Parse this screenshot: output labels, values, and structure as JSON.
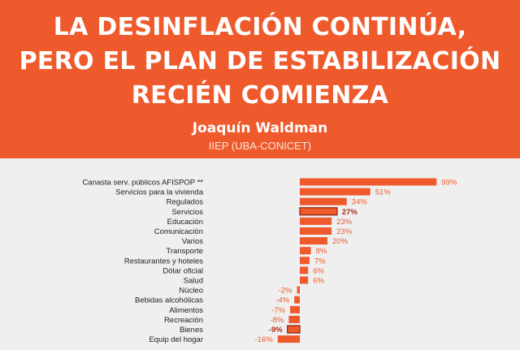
{
  "header": {
    "title_lines": [
      "LA DESINFLACIÓN CONTINÚA,",
      "PERO EL PLAN DE ESTABILIZACIÓN",
      "RECIÉN COMIENZA"
    ],
    "author": "Joaquín Waldman",
    "affiliation": "IIEP (UBA-CONICET)"
  },
  "colors": {
    "header_bg": "#ee5a2c",
    "bar": "#ee5a2c",
    "bar_highlight": "#ee5a2c",
    "highlight_outline": "#8a1d10",
    "value_label": "#ee5a2c",
    "value_label_highlight": "#b1261a",
    "background": "#efefef"
  },
  "chart_data": {
    "type": "bar",
    "orientation": "horizontal",
    "categories": [
      "Canasta serv. públicos AFISPOP **",
      "Servicios para la vivienda",
      "Regulados",
      "Servicios",
      "Educación",
      "Comunicación",
      "Varios",
      "Transporte",
      "Restaurantes y hoteles",
      "Dólar oficial",
      "Salud",
      "Núcleo",
      "Bebidas alcohólicas",
      "Alimentos",
      "Recreación",
      "Bienes",
      "Equip del hogar"
    ],
    "values": [
      99,
      51,
      34,
      27,
      23,
      23,
      20,
      8,
      7,
      6,
      6,
      -2,
      -4,
      -7,
      -8,
      -9,
      -16
    ],
    "value_labels": [
      "99%",
      "51%",
      "34%",
      "27%",
      "23%",
      "23%",
      "20%",
      "8%",
      "7%",
      "6%",
      "6%",
      "-2%",
      "-4%",
      "-7%",
      "-8%",
      "-9%",
      "-16%"
    ],
    "highlighted": [
      "Servicios",
      "Bienes"
    ],
    "unit": "%",
    "xlim": [
      -16,
      99
    ],
    "grid": false,
    "legend": "none"
  }
}
